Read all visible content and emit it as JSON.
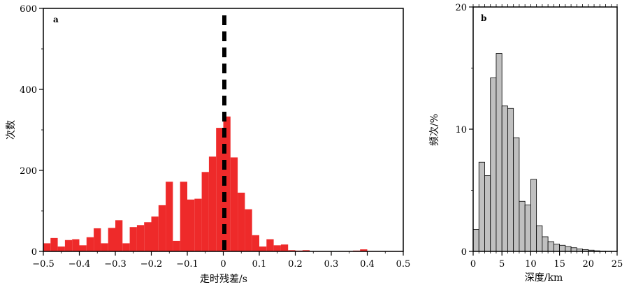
{
  "chart_data": [
    {
      "type": "bar",
      "panel_label": "a",
      "xlabel": "走时残差/s",
      "ylabel": "次数",
      "xlim": [
        -0.5,
        0.5
      ],
      "ylim": [
        0,
        600
      ],
      "xticks": [
        -0.5,
        -0.4,
        -0.3,
        -0.2,
        -0.1,
        0,
        0.1,
        0.2,
        0.3,
        0.4,
        0.5
      ],
      "xtick_labels": [
        "−0.5",
        "−0.4",
        "−0.3",
        "−0.2",
        "−0.1",
        "0",
        "0.1",
        "0.2",
        "0.3",
        "0.4",
        "0.5"
      ],
      "yticks": [
        0,
        200,
        400,
        600
      ],
      "ytick_labels": [
        "0",
        "200",
        "400",
        "600"
      ],
      "bin_width": 0.02,
      "bin_starts": [
        -0.5,
        -0.48,
        -0.46,
        -0.44,
        -0.42,
        -0.4,
        -0.38,
        -0.36,
        -0.34,
        -0.32,
        -0.3,
        -0.28,
        -0.26,
        -0.24,
        -0.22,
        -0.2,
        -0.18,
        -0.16,
        -0.14,
        -0.12,
        -0.1,
        -0.08,
        -0.06,
        -0.04,
        -0.02,
        0,
        0.02,
        0.04,
        0.06,
        0.08,
        0.1,
        0.12,
        0.14,
        0.16,
        0.18,
        0.2,
        0.22,
        0.24,
        0.26,
        0.28,
        0.3,
        0.32,
        0.34,
        0.36,
        0.38,
        0.4,
        0.42,
        0.44,
        0.46,
        0.48
      ],
      "values": [
        20,
        33,
        12,
        28,
        30,
        15,
        35,
        57,
        20,
        58,
        77,
        20,
        60,
        65,
        72,
        86,
        114,
        172,
        26,
        172,
        128,
        130,
        196,
        234,
        305,
        333,
        232,
        145,
        104,
        40,
        12,
        30,
        15,
        17,
        3,
        2,
        3,
        1,
        1,
        1,
        0,
        1,
        1,
        2,
        5,
        1,
        1,
        1,
        1,
        1
      ],
      "bar_color": "#ee2a2a",
      "reference_line": {
        "x": 0,
        "style": "dashed",
        "color": "#000000"
      }
    },
    {
      "type": "bar",
      "panel_label": "b",
      "xlabel": "深度/km",
      "ylabel": "频次/%",
      "xlim": [
        0,
        25
      ],
      "ylim": [
        0,
        20
      ],
      "xticks": [
        0,
        5,
        10,
        15,
        20,
        25
      ],
      "xtick_labels": [
        "0",
        "5",
        "10",
        "15",
        "20",
        "25"
      ],
      "yticks": [
        0,
        10,
        20
      ],
      "ytick_labels": [
        "0",
        "10",
        "20"
      ],
      "bin_width": 1,
      "bin_starts": [
        0,
        1,
        2,
        3,
        4,
        5,
        6,
        7,
        8,
        9,
        10,
        11,
        12,
        13,
        14,
        15,
        16,
        17,
        18,
        19,
        20,
        21,
        22,
        23,
        24
      ],
      "values": [
        1.8,
        7.3,
        6.2,
        14.2,
        16.2,
        11.9,
        11.7,
        9.3,
        4.1,
        3.8,
        5.9,
        2.1,
        1.2,
        0.8,
        0.6,
        0.5,
        0.4,
        0.3,
        0.2,
        0.15,
        0.1,
        0.05,
        0.03,
        0.02,
        0.01
      ],
      "bar_color": "#c0c0c0",
      "bar_edge_color": "#000000"
    }
  ]
}
